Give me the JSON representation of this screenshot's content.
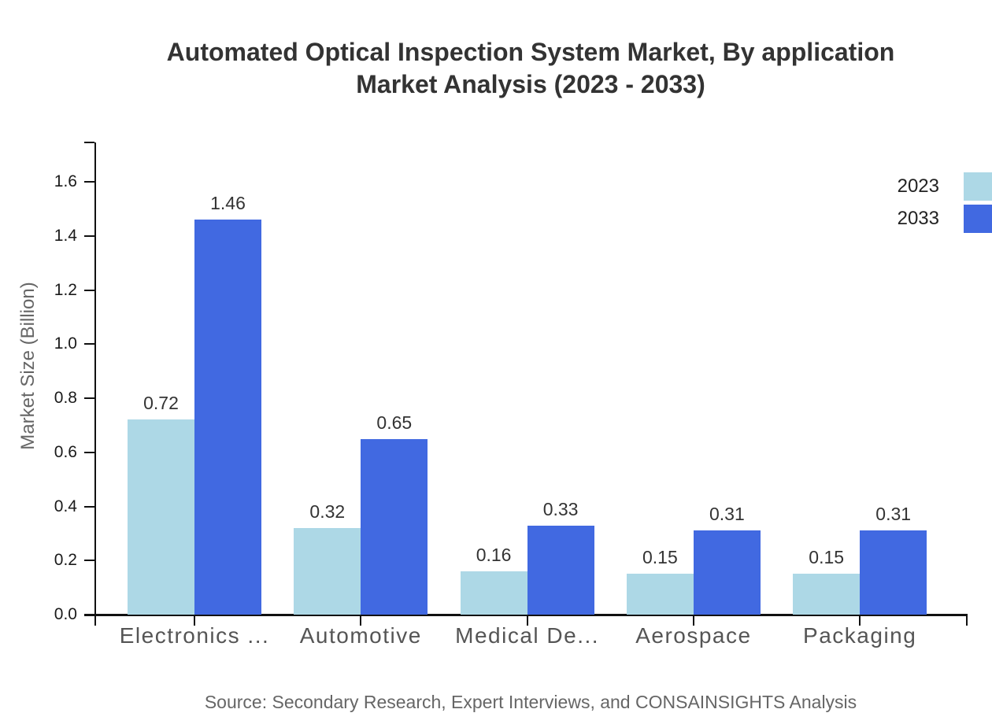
{
  "title": {
    "line1": "Automated Optical Inspection System Market, By application",
    "line2": "Market Analysis (2023 - 2033)"
  },
  "source": "Source: Secondary Research, Expert Interviews, and CONSAINSIGHTS Analysis",
  "chart_data": {
    "type": "bar",
    "title": "Automated Optical Inspection System Market, By application Market Analysis (2023 - 2033)",
    "categories": [
      "Electronics ...",
      "Automotive",
      "Medical De...",
      "Aerospace",
      "Packaging"
    ],
    "series": [
      {
        "name": "2023",
        "color": "#ADD8E6",
        "values": [
          0.72,
          0.32,
          0.16,
          0.15,
          0.15
        ]
      },
      {
        "name": "2033",
        "color": "#4169E1",
        "values": [
          1.46,
          0.65,
          0.33,
          0.31,
          0.31
        ]
      }
    ],
    "xlabel": "",
    "ylabel": "Market Size (Billion)",
    "ylim": [
      0,
      1.75
    ],
    "yticks": [
      0.0,
      0.2,
      0.4,
      0.6,
      0.8,
      1.0,
      1.2,
      1.4,
      1.6
    ],
    "grid": false,
    "legend_position": "top-right",
    "value_labels": true,
    "value_label_format": "0.00"
  }
}
